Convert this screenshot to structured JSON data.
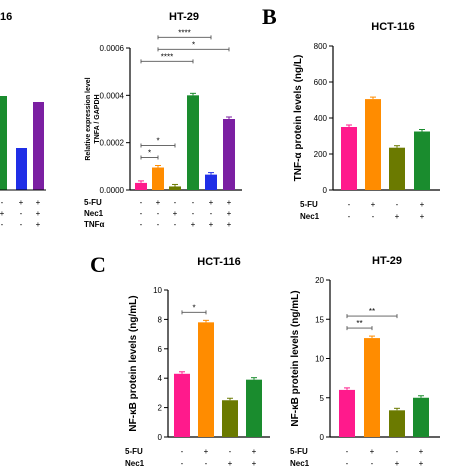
{
  "panel_letters": {
    "b": "B",
    "c": "C"
  },
  "chart_data": [
    {
      "id": "left-crop",
      "type": "bar",
      "title": "16",
      "bar_tops": [
        96,
        148,
        102
      ],
      "bar_colors": [
        "#1a8c2e",
        "#1f2ee6",
        "#7b1fa2"
      ],
      "rows": [
        {
          "label": "",
          "values": [
            "-",
            "+",
            "+"
          ]
        },
        {
          "label": "",
          "values": [
            "+",
            "-",
            "+"
          ]
        },
        {
          "label": "",
          "values": [
            "-",
            "-",
            "+"
          ]
        }
      ]
    },
    {
      "id": "ht29-tnfa-mrna",
      "type": "bar",
      "title": "HT-29",
      "ylabel": [
        "Relative expression level",
        "TNFA / GAPDH"
      ],
      "ylim": [
        0,
        0.0006
      ],
      "yticks": [
        "0.0000",
        "0.0002",
        "0.0004",
        "0.0006"
      ],
      "ytick_values": [
        0,
        0.0002,
        0.0004,
        0.0006
      ],
      "values": [
        3e-05,
        9.5e-05,
        1.5e-05,
        0.0004,
        6.5e-05,
        0.0003
      ],
      "colors": [
        "#ff1a8c",
        "#ff8c00",
        "#6b7a00",
        "#1a8c2e",
        "#1f2ee6",
        "#7b1fa2"
      ],
      "rows": [
        {
          "label": "5-FU",
          "values": [
            "-",
            "+",
            "-",
            "-",
            "+",
            "+"
          ]
        },
        {
          "label": "Nec1",
          "values": [
            "-",
            "-",
            "+",
            "-",
            "-",
            "+"
          ]
        },
        {
          "label": "TNFα",
          "values": [
            "-",
            "-",
            "-",
            "+",
            "+",
            "+"
          ]
        }
      ],
      "significance": [
        {
          "from": 0,
          "to": 1,
          "label": "*"
        },
        {
          "from": 0,
          "to": 2,
          "label": "*"
        },
        {
          "from": 0,
          "to": 3,
          "label": "****"
        },
        {
          "from": 1,
          "to": 5,
          "label": "*"
        },
        {
          "from": 1,
          "to": 4,
          "label": "****"
        }
      ]
    },
    {
      "id": "hct116-tnfa-protein",
      "type": "bar",
      "title": "HCT-116",
      "ylabel": "TNF-α protein levels (ng/L)",
      "ylim": [
        0,
        800
      ],
      "yticks": [
        "0",
        "200",
        "400",
        "600",
        "800"
      ],
      "ytick_values": [
        0,
        200,
        400,
        600,
        800
      ],
      "values": [
        350,
        505,
        235,
        325
      ],
      "colors": [
        "#ff1a8c",
        "#ff8c00",
        "#6b7a00",
        "#1a8c2e"
      ],
      "rows": [
        {
          "label": "5-FU",
          "values": [
            "-",
            "+",
            "-",
            "+"
          ]
        },
        {
          "label": "Nec1",
          "values": [
            "-",
            "-",
            "+",
            "+"
          ]
        }
      ],
      "significance": []
    },
    {
      "id": "hct116-nfkb-protein",
      "type": "bar",
      "title": "HCT-116",
      "ylabel": "NF-κB protein levels (ng/mL)",
      "ylim": [
        0,
        10
      ],
      "yticks": [
        "0",
        "2",
        "4",
        "6",
        "8",
        "10"
      ],
      "ytick_values": [
        0,
        2,
        4,
        6,
        8,
        10
      ],
      "values": [
        4.3,
        7.8,
        2.5,
        3.9
      ],
      "colors": [
        "#ff1a8c",
        "#ff8c00",
        "#6b7a00",
        "#1a8c2e"
      ],
      "rows": [
        {
          "label": "5-FU",
          "values": [
            "-",
            "+",
            "-",
            "+"
          ]
        },
        {
          "label": "Nec1",
          "values": [
            "-",
            "-",
            "+",
            "+"
          ]
        }
      ],
      "significance": [
        {
          "from": 0,
          "to": 1,
          "label": "*"
        }
      ]
    },
    {
      "id": "ht29-nfkb-protein",
      "type": "bar",
      "title": "HT-29",
      "ylabel": "NF-κB protein levels (ng/mL)",
      "ylim": [
        0,
        20
      ],
      "yticks": [
        "0",
        "5",
        "10",
        "15",
        "20"
      ],
      "ytick_values": [
        0,
        5,
        10,
        15,
        20
      ],
      "values": [
        6.0,
        12.6,
        3.4,
        5.0
      ],
      "colors": [
        "#ff1a8c",
        "#ff8c00",
        "#6b7a00",
        "#1a8c2e"
      ],
      "rows": [
        {
          "label": "5-FU",
          "values": [
            "-",
            "+",
            "-",
            "+"
          ]
        },
        {
          "label": "Nec1",
          "values": [
            "-",
            "-",
            "+",
            "+"
          ]
        }
      ],
      "significance": [
        {
          "from": 0,
          "to": 1,
          "label": "**"
        },
        {
          "from": 0,
          "to": 2,
          "label": "**"
        }
      ]
    }
  ]
}
